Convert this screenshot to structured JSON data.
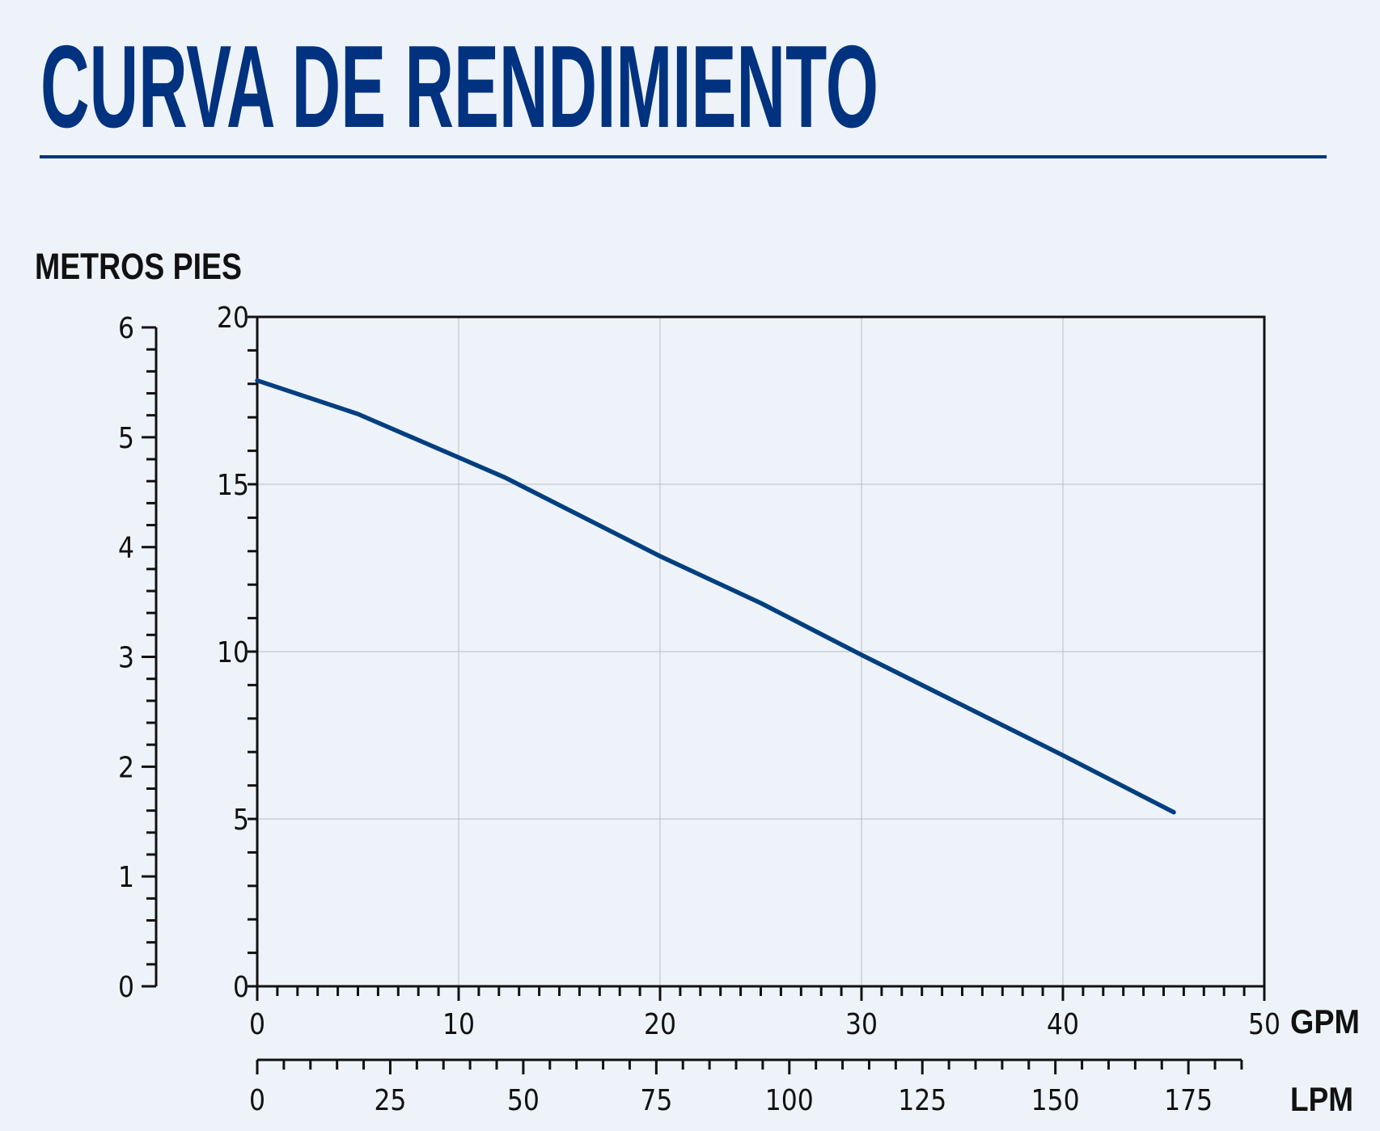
{
  "header": {
    "title": "CURVA DE RENDIMIENTO"
  },
  "colors": {
    "background": "#eef3fa",
    "title": "#00327f",
    "curve": "#003f7f",
    "grid": "#b8bcc2",
    "axis": "#111111"
  },
  "chart_data": {
    "type": "line",
    "title": "",
    "units_label": "METROS PIES",
    "xlabel": "GPM",
    "xlabel_secondary": "LPM",
    "xlim": [
      0,
      50
    ],
    "ylim": [
      0,
      20
    ],
    "y_secondary_lim": [
      0,
      6
    ],
    "x_secondary_lim": [
      0,
      185
    ],
    "x_ticks": [
      "0",
      "10",
      "20",
      "30",
      "40",
      "50"
    ],
    "y_ticks": [
      "0",
      "5",
      "10",
      "15",
      "20"
    ],
    "y_secondary_ticks": [
      "0",
      "1",
      "2",
      "3",
      "4",
      "5",
      "6"
    ],
    "x_secondary_ticks": [
      "0",
      "25",
      "50",
      "75",
      "100",
      "125",
      "150",
      "175"
    ],
    "grid": true,
    "series": [
      {
        "x": [
          0,
          5,
          10,
          12.3,
          20,
          25,
          30,
          35,
          40,
          45.5
        ],
        "y": [
          18.1,
          17.1,
          15.8,
          15.2,
          12.85,
          11.45,
          9.9,
          8.4,
          6.9,
          5.2
        ]
      }
    ]
  }
}
